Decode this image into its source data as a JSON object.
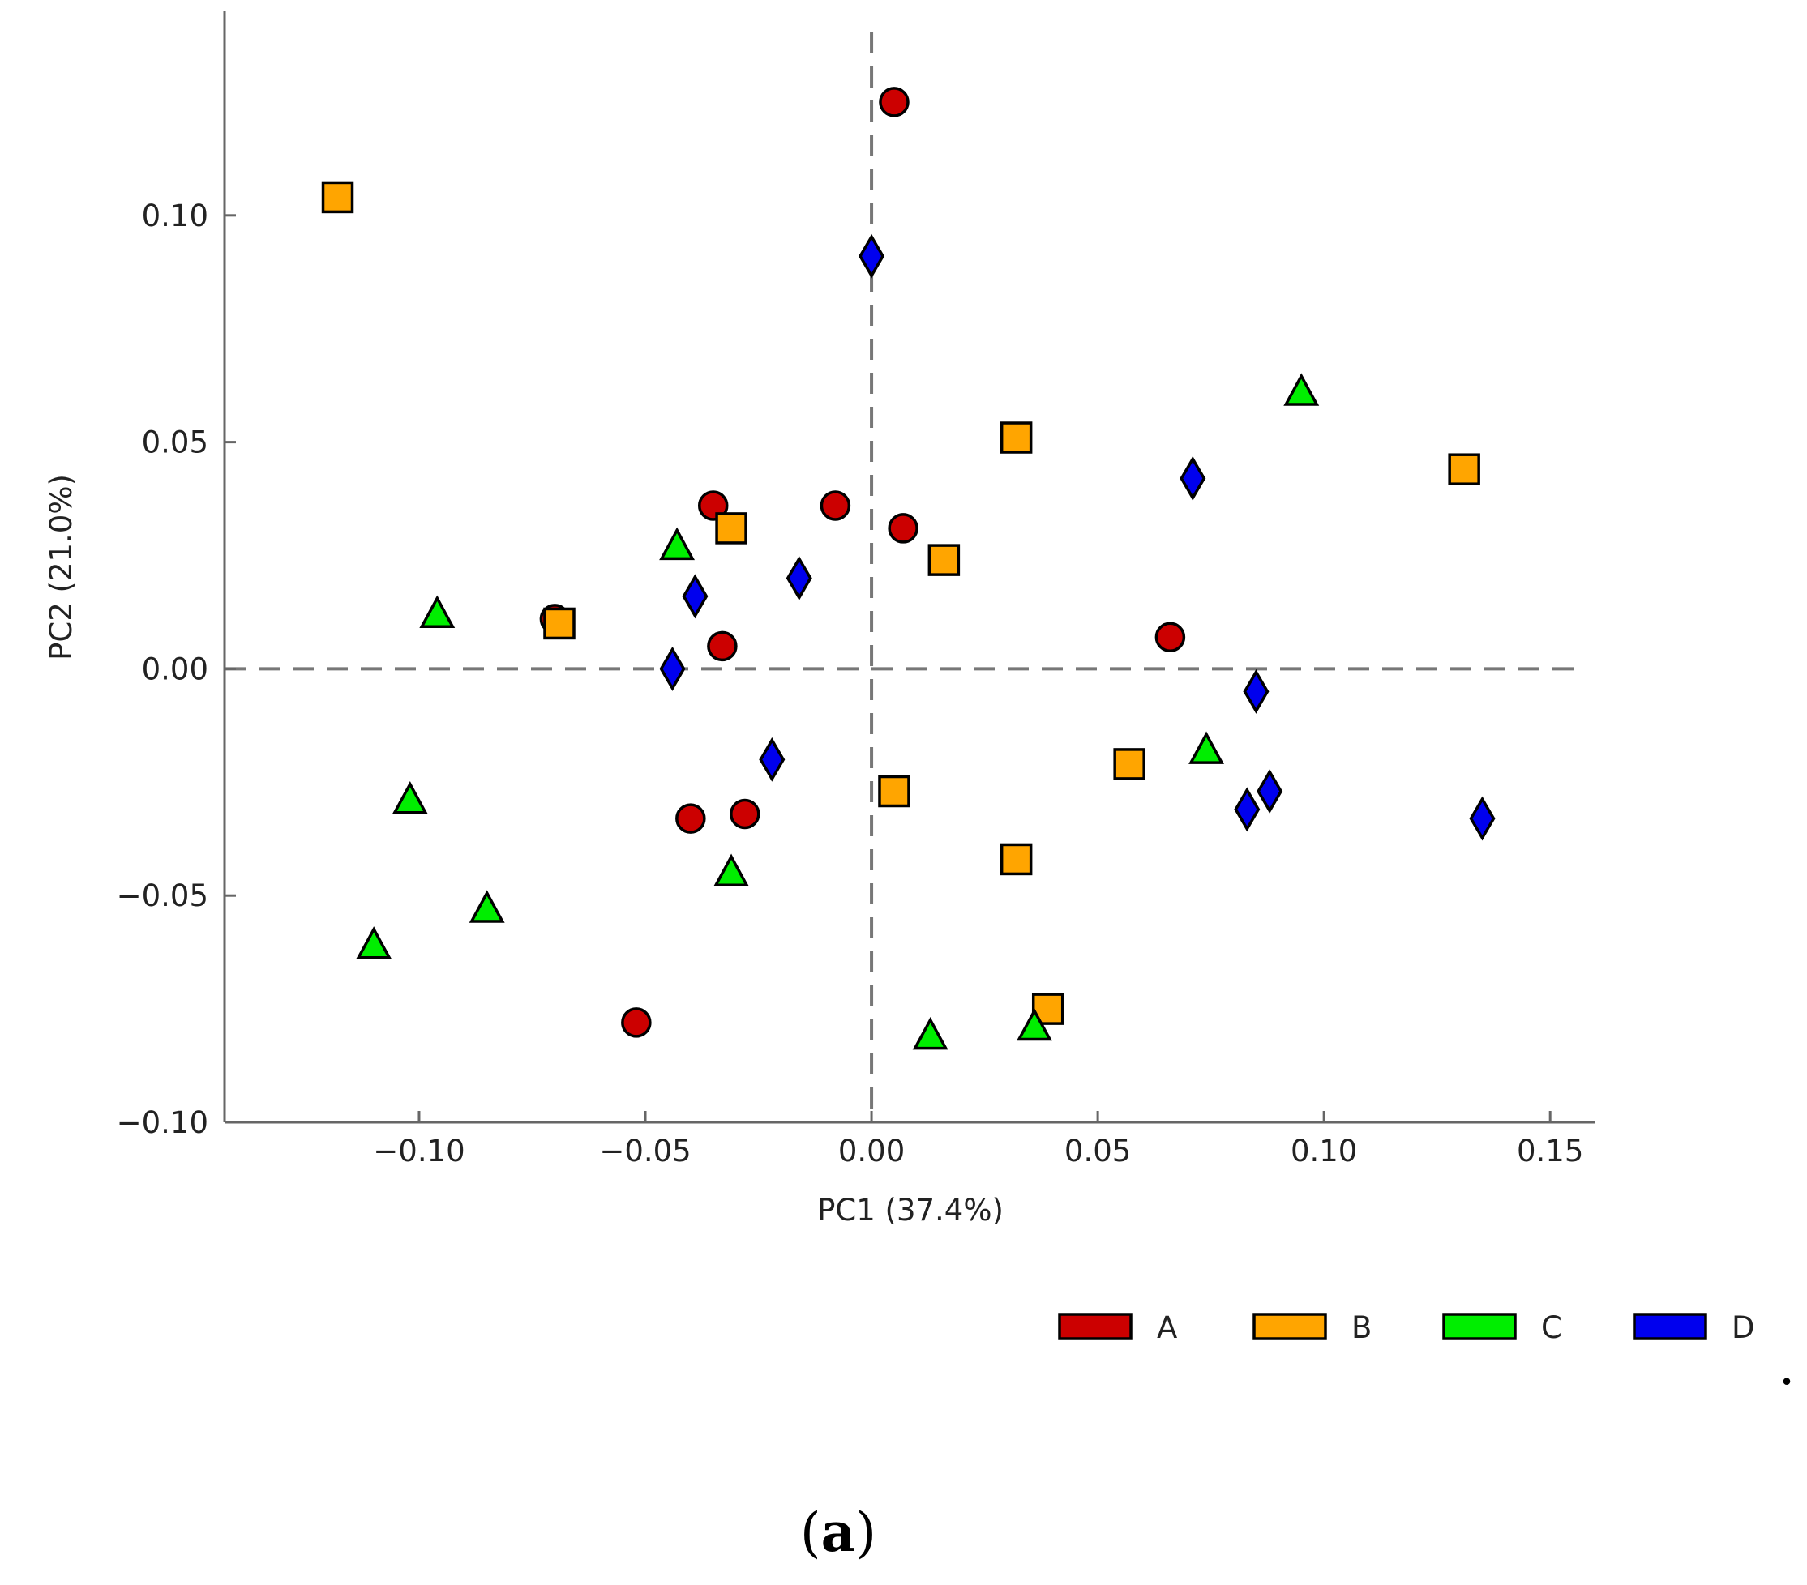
{
  "chart_data": {
    "type": "scatter",
    "title": "",
    "xlabel": "PC1 (37.4%)",
    "ylabel": "PC2 (21.0%)",
    "xlim": [
      -0.143,
      0.16
    ],
    "ylim": [
      -0.1,
      0.145
    ],
    "xticks": [
      -0.1,
      -0.05,
      0.0,
      0.05,
      0.1,
      0.15
    ],
    "xtick_labels": [
      "−0.10",
      "−0.05",
      "0.00",
      "0.05",
      "0.10",
      "0.15"
    ],
    "yticks": [
      -0.1,
      -0.05,
      0.0,
      0.05,
      0.1
    ],
    "ytick_labels": [
      "−0.10",
      "−0.05",
      "0.00",
      "0.05",
      "0.10"
    ],
    "reference_lines": {
      "x": 0.0,
      "y": 0.0,
      "style": "dashed"
    },
    "grid": false,
    "legend_position": "bottom-right",
    "series": [
      {
        "name": "A",
        "marker": "circle",
        "color": "#cc0000",
        "points": [
          [
            0.005,
            0.125
          ],
          [
            -0.035,
            0.036
          ],
          [
            -0.008,
            0.036
          ],
          [
            0.007,
            0.031
          ],
          [
            -0.07,
            0.011
          ],
          [
            -0.033,
            0.005
          ],
          [
            0.066,
            0.007
          ],
          [
            -0.04,
            -0.033
          ],
          [
            -0.028,
            -0.032
          ],
          [
            -0.052,
            -0.078
          ]
        ]
      },
      {
        "name": "B",
        "marker": "square",
        "color": "#ffa500",
        "points": [
          [
            -0.118,
            0.104
          ],
          [
            0.032,
            0.051
          ],
          [
            0.131,
            0.044
          ],
          [
            -0.031,
            0.031
          ],
          [
            0.016,
            0.024
          ],
          [
            -0.069,
            0.01
          ],
          [
            0.057,
            -0.021
          ],
          [
            0.005,
            -0.027
          ],
          [
            0.032,
            -0.042
          ],
          [
            0.039,
            -0.075
          ]
        ]
      },
      {
        "name": "C",
        "marker": "triangle",
        "color": "#00ee00",
        "points": [
          [
            0.095,
            0.061
          ],
          [
            -0.043,
            0.027
          ],
          [
            -0.096,
            0.012
          ],
          [
            0.074,
            -0.018
          ],
          [
            -0.102,
            -0.029
          ],
          [
            -0.031,
            -0.045
          ],
          [
            -0.085,
            -0.053
          ],
          [
            -0.11,
            -0.061
          ],
          [
            0.013,
            -0.081
          ],
          [
            0.036,
            -0.079
          ]
        ]
      },
      {
        "name": "D",
        "marker": "diamond",
        "color": "#0000ee",
        "points": [
          [
            0.0,
            0.091
          ],
          [
            0.071,
            0.042
          ],
          [
            -0.016,
            0.02
          ],
          [
            -0.039,
            0.016
          ],
          [
            -0.044,
            0.0
          ],
          [
            0.085,
            -0.005
          ],
          [
            -0.022,
            -0.02
          ],
          [
            0.088,
            -0.027
          ],
          [
            0.083,
            -0.031
          ],
          [
            0.135,
            -0.033
          ]
        ]
      }
    ]
  },
  "caption": {
    "open": "(",
    "letter": "a",
    "close": ")"
  },
  "trailing_mark": "."
}
